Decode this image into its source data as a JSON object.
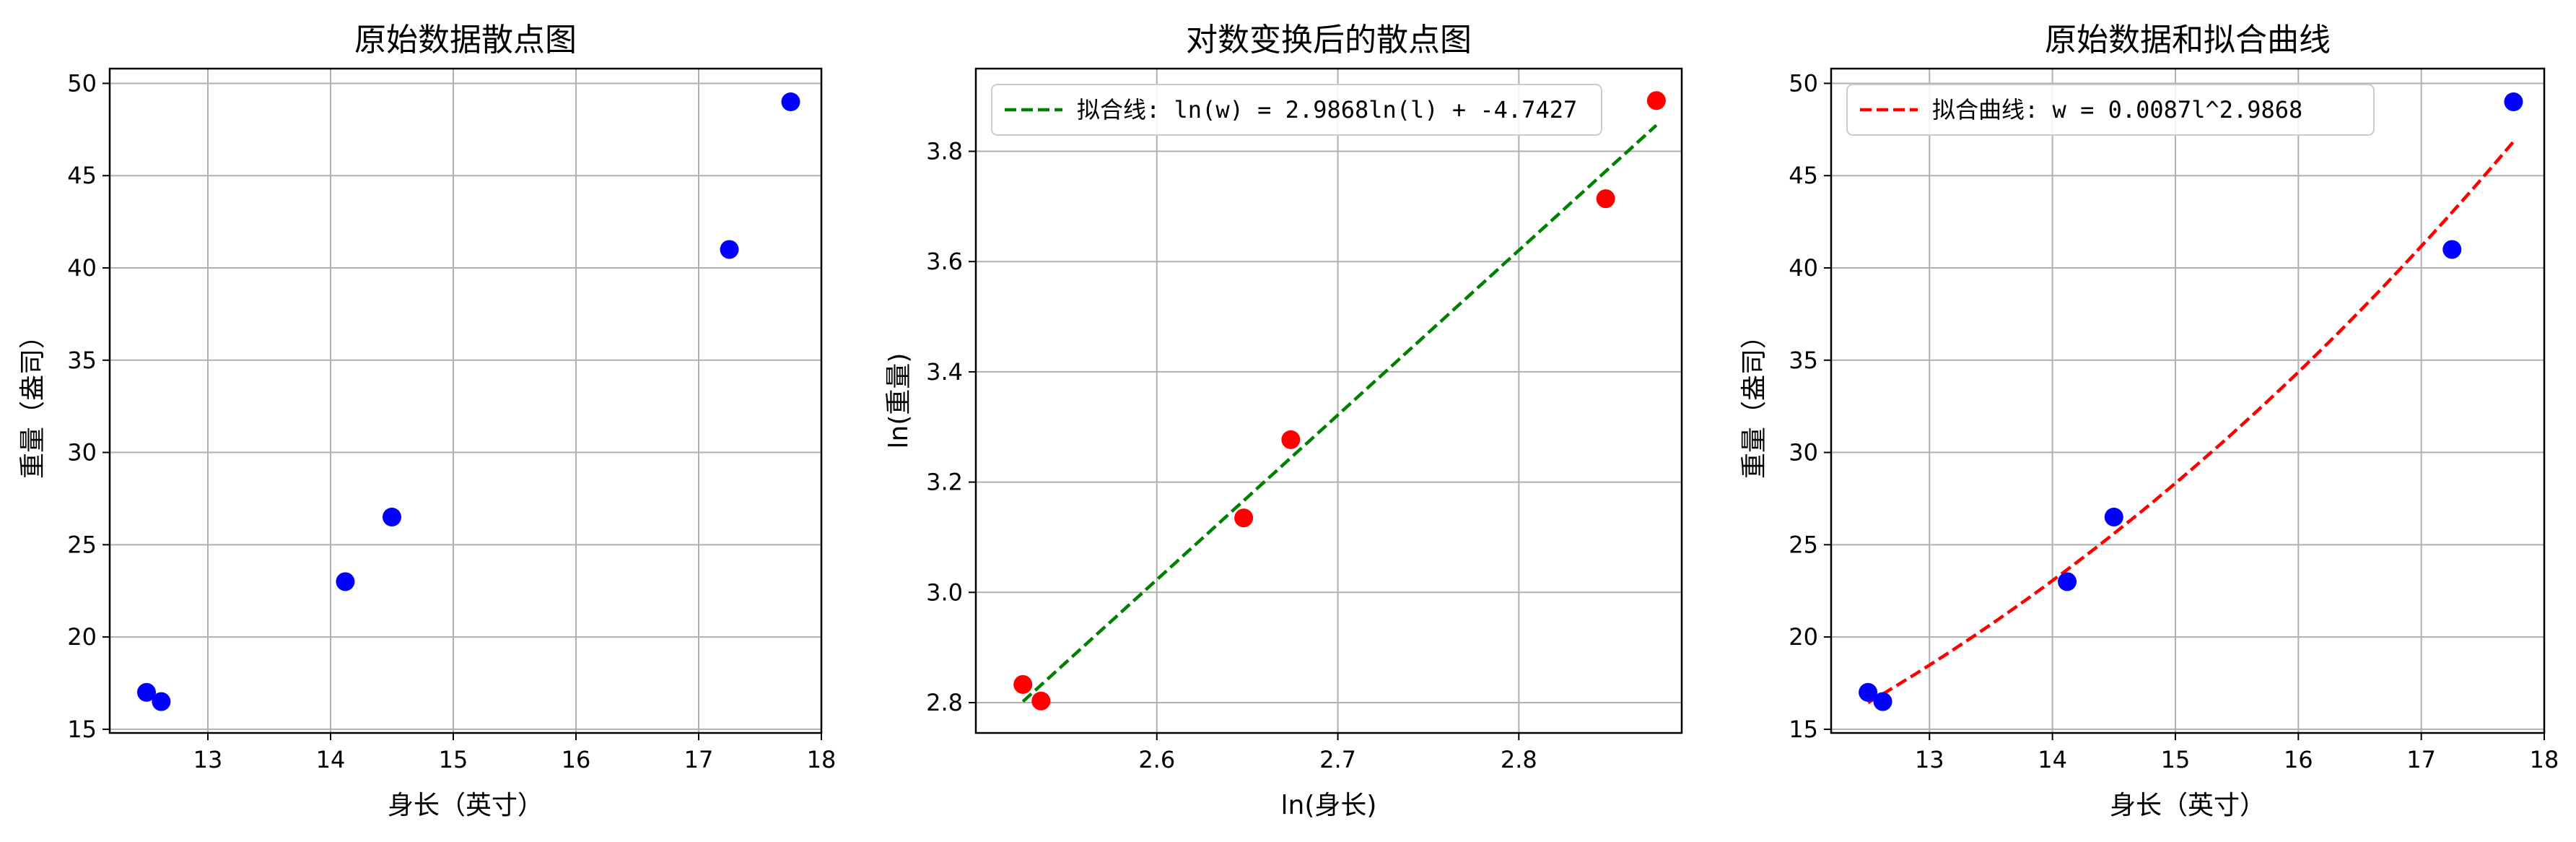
{
  "chart_data": [
    {
      "type": "scatter",
      "title": "原始数据散点图",
      "xlabel": "身长（英寸）",
      "ylabel": "重量（盎司）",
      "xlim": [
        12.2,
        18.0
      ],
      "ylim": [
        14.8,
        50.8
      ],
      "xticks": [
        13,
        14,
        15,
        16,
        17,
        18
      ],
      "yticks": [
        15,
        20,
        25,
        30,
        35,
        40,
        45,
        50
      ],
      "grid": true,
      "legend": null,
      "series": [
        {
          "type": "scatter",
          "color": "#0000ff",
          "points": [
            [
              12.5,
              17.0
            ],
            [
              12.62,
              16.5
            ],
            [
              14.12,
              23.0
            ],
            [
              14.5,
              26.5
            ],
            [
              17.25,
              41.0
            ],
            [
              17.75,
              49.0
            ]
          ]
        }
      ]
    },
    {
      "type": "scatter",
      "title": "对数变换后的散点图",
      "xlabel": "ln(身长)",
      "ylabel": "ln(重量)",
      "xlim": [
        2.5,
        2.89
      ],
      "ylim": [
        2.745,
        3.95
      ],
      "xticks": [
        2.6,
        2.7,
        2.8
      ],
      "yticks": [
        2.8,
        3.0,
        3.2,
        3.4,
        3.6,
        3.8
      ],
      "tick_format": 1,
      "grid": true,
      "legend": "top-left",
      "series": [
        {
          "type": "scatter",
          "color": "#ff0000",
          "points": [
            [
              2.526,
              2.833
            ],
            [
              2.536,
              2.803
            ],
            [
              2.648,
              3.135
            ],
            [
              2.674,
              3.277
            ],
            [
              2.848,
              3.714
            ],
            [
              2.876,
              3.892
            ]
          ]
        },
        {
          "type": "line",
          "name": "拟合线: ln(w) = 2.9868ln(l) + -4.7427",
          "color": "#008000",
          "dash": true,
          "fit": {
            "kind": "linear",
            "slope": 2.9868,
            "intercept": -4.7427,
            "x_range": [
              2.526,
              2.876
            ]
          }
        }
      ]
    },
    {
      "type": "scatter",
      "title": "原始数据和拟合曲线",
      "xlabel": "身长（英寸）",
      "ylabel": "重量（盎司）",
      "xlim": [
        12.2,
        18.0
      ],
      "ylim": [
        14.8,
        50.8
      ],
      "xticks": [
        13,
        14,
        15,
        16,
        17,
        18
      ],
      "yticks": [
        15,
        20,
        25,
        30,
        35,
        40,
        45,
        50
      ],
      "grid": true,
      "legend": "top-left",
      "series": [
        {
          "type": "scatter",
          "color": "#0000ff",
          "points": [
            [
              12.5,
              17.0
            ],
            [
              12.62,
              16.5
            ],
            [
              14.12,
              23.0
            ],
            [
              14.5,
              26.5
            ],
            [
              17.25,
              41.0
            ],
            [
              17.75,
              49.0
            ]
          ]
        },
        {
          "type": "line",
          "name": "拟合曲线: w = 0.0087l^2.9868",
          "color": "#ff0000",
          "dash": true,
          "fit": {
            "kind": "power",
            "coef": 0.0087,
            "exp": 2.9868,
            "x_range": [
              12.5,
              17.75
            ]
          }
        }
      ]
    }
  ]
}
